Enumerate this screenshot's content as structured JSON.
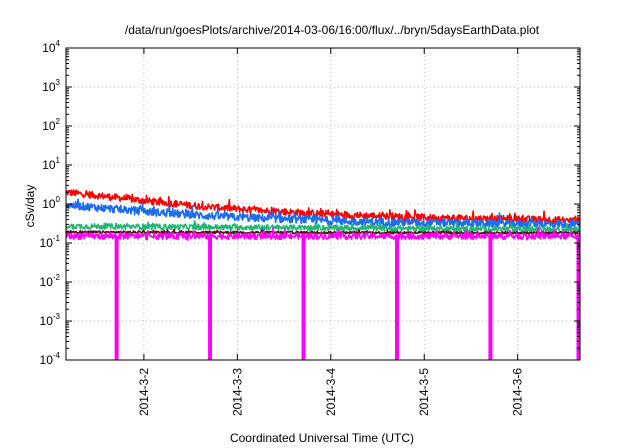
{
  "chart_data": {
    "type": "line",
    "title": "/data/run/goesPlots/archive/2014-03-06/16:00/flux/../bryn/5daysEarthData.plot",
    "xlabel": "Coordinated Universal Time (UTC)",
    "ylabel": "cSv/day",
    "yscale": "log",
    "ylim": [
      0.0001,
      10000
    ],
    "y_ticks": [
      {
        "base": "10",
        "exp": "-4",
        "value": 0.0001
      },
      {
        "base": "10",
        "exp": "-3",
        "value": 0.001
      },
      {
        "base": "10",
        "exp": "-2",
        "value": 0.01
      },
      {
        "base": "10",
        "exp": "-1",
        "value": 0.1
      },
      {
        "base": "10",
        "exp": "0",
        "value": 1
      },
      {
        "base": "10",
        "exp": "1",
        "value": 10
      },
      {
        "base": "10",
        "exp": "2",
        "value": 100
      },
      {
        "base": "10",
        "exp": "3",
        "value": 1000
      },
      {
        "base": "10",
        "exp": "4",
        "value": 10000
      }
    ],
    "xlim": [
      "2014-03-01T04:00",
      "2014-03-06T16:00"
    ],
    "x_ticks": [
      "2014-3-2",
      "2014-3-3",
      "2014-3-4",
      "2014-3-5",
      "2014-3-6"
    ],
    "grid": true,
    "series": [
      {
        "color": "#ff0000",
        "x": [
          "2014-03-01T04:00",
          "2014-03-01T16:00",
          "2014-03-02T04:00",
          "2014-03-02T16:00",
          "2014-03-03T04:00",
          "2014-03-03T16:00",
          "2014-03-04T04:00",
          "2014-03-04T16:00",
          "2014-03-05T04:00",
          "2014-03-05T16:00",
          "2014-03-06T04:00",
          "2014-03-06T16:00"
        ],
        "values": [
          2.0,
          1.5,
          1.1,
          0.85,
          0.7,
          0.6,
          0.52,
          0.48,
          0.44,
          0.42,
          0.4,
          0.38
        ]
      },
      {
        "color": "#1a6cf0",
        "x": [
          "2014-03-01T04:00",
          "2014-03-01T16:00",
          "2014-03-02T04:00",
          "2014-03-02T16:00",
          "2014-03-03T04:00",
          "2014-03-03T16:00",
          "2014-03-04T04:00",
          "2014-03-04T16:00",
          "2014-03-05T04:00",
          "2014-03-05T16:00",
          "2014-03-06T04:00",
          "2014-03-06T16:00"
        ],
        "values": [
          0.95,
          0.75,
          0.6,
          0.5,
          0.44,
          0.4,
          0.36,
          0.34,
          0.33,
          0.32,
          0.31,
          0.3
        ]
      },
      {
        "color": "#22b573",
        "x": [
          "2014-03-01T04:00",
          "2014-03-06T16:00"
        ],
        "values": [
          0.27,
          0.22
        ]
      },
      {
        "color": "#5a1010",
        "x": [
          "2014-03-01T04:00",
          "2014-03-06T16:00"
        ],
        "values": [
          0.19,
          0.18
        ]
      },
      {
        "color": "#ff00ff",
        "x": [
          "2014-03-01T04:00",
          "2014-03-06T16:00"
        ],
        "values": [
          0.15,
          0.15
        ],
        "dropouts_to_min": [
          "2014-03-01T17:00",
          "2014-03-02T17:00",
          "2014-03-03T17:00",
          "2014-03-04T17:00",
          "2014-03-05T17:00",
          "2014-03-06T16:00"
        ]
      }
    ]
  }
}
